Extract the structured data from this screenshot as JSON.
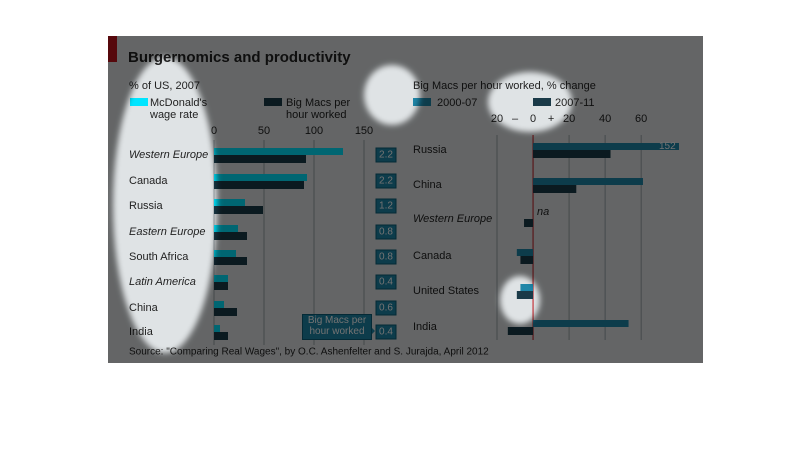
{
  "title": "Burgernomics and productivity",
  "source": "Source: \"Comparing Real Wages\", by O.C. Ashenfelter and S. Jurajda, April 2012",
  "chart_data": [
    {
      "type": "bar",
      "orientation": "horizontal",
      "title": "% of US, 2007",
      "categories": [
        "Western Europe",
        "Canada",
        "Russia",
        "Eastern Europe",
        "South Africa",
        "Latin America",
        "China",
        "India"
      ],
      "italic_categories": [
        true,
        false,
        false,
        true,
        false,
        true,
        false,
        false
      ],
      "series": [
        {
          "name": "McDonald's wage rate",
          "color": "#00e5ff",
          "values": [
            129,
            93,
            31,
            24,
            22,
            14,
            10,
            6
          ]
        },
        {
          "name": "Big Macs per hour worked",
          "color": "#1a3a48",
          "values": [
            92,
            90,
            49,
            33,
            33,
            14,
            23,
            14
          ]
        }
      ],
      "big_macs_per_hour": [
        2.2,
        2.2,
        1.2,
        0.8,
        0.8,
        0.4,
        0.6,
        0.4
      ],
      "annotation": "Big Macs per hour worked",
      "xlim": [
        0,
        150
      ],
      "xticks": [
        0,
        50,
        100,
        150
      ],
      "grid": true
    },
    {
      "type": "bar",
      "orientation": "horizontal",
      "title": "Big Macs per hour worked, % change",
      "categories": [
        "Russia",
        "China",
        "Western Europe",
        "Canada",
        "United States",
        "India"
      ],
      "italic_categories": [
        false,
        false,
        true,
        false,
        false,
        false
      ],
      "series": [
        {
          "name": "2000-07",
          "color": "#1f86a8",
          "values": [
            152,
            61,
            null,
            -9,
            -7,
            53
          ],
          "value_labels": [
            "152",
            null,
            null,
            null,
            null,
            null
          ]
        },
        {
          "name": "2007-11",
          "color": "#1a3a48",
          "values": [
            43,
            24,
            -5,
            -7,
            -9,
            -14
          ]
        }
      ],
      "na_label": "na",
      "axis_signs": [
        "–",
        "+"
      ],
      "xlim": [
        -25,
        81
      ],
      "xticks": [
        {
          "value": -20,
          "label": "20"
        },
        0,
        20,
        40,
        60
      ],
      "grid": true
    }
  ]
}
